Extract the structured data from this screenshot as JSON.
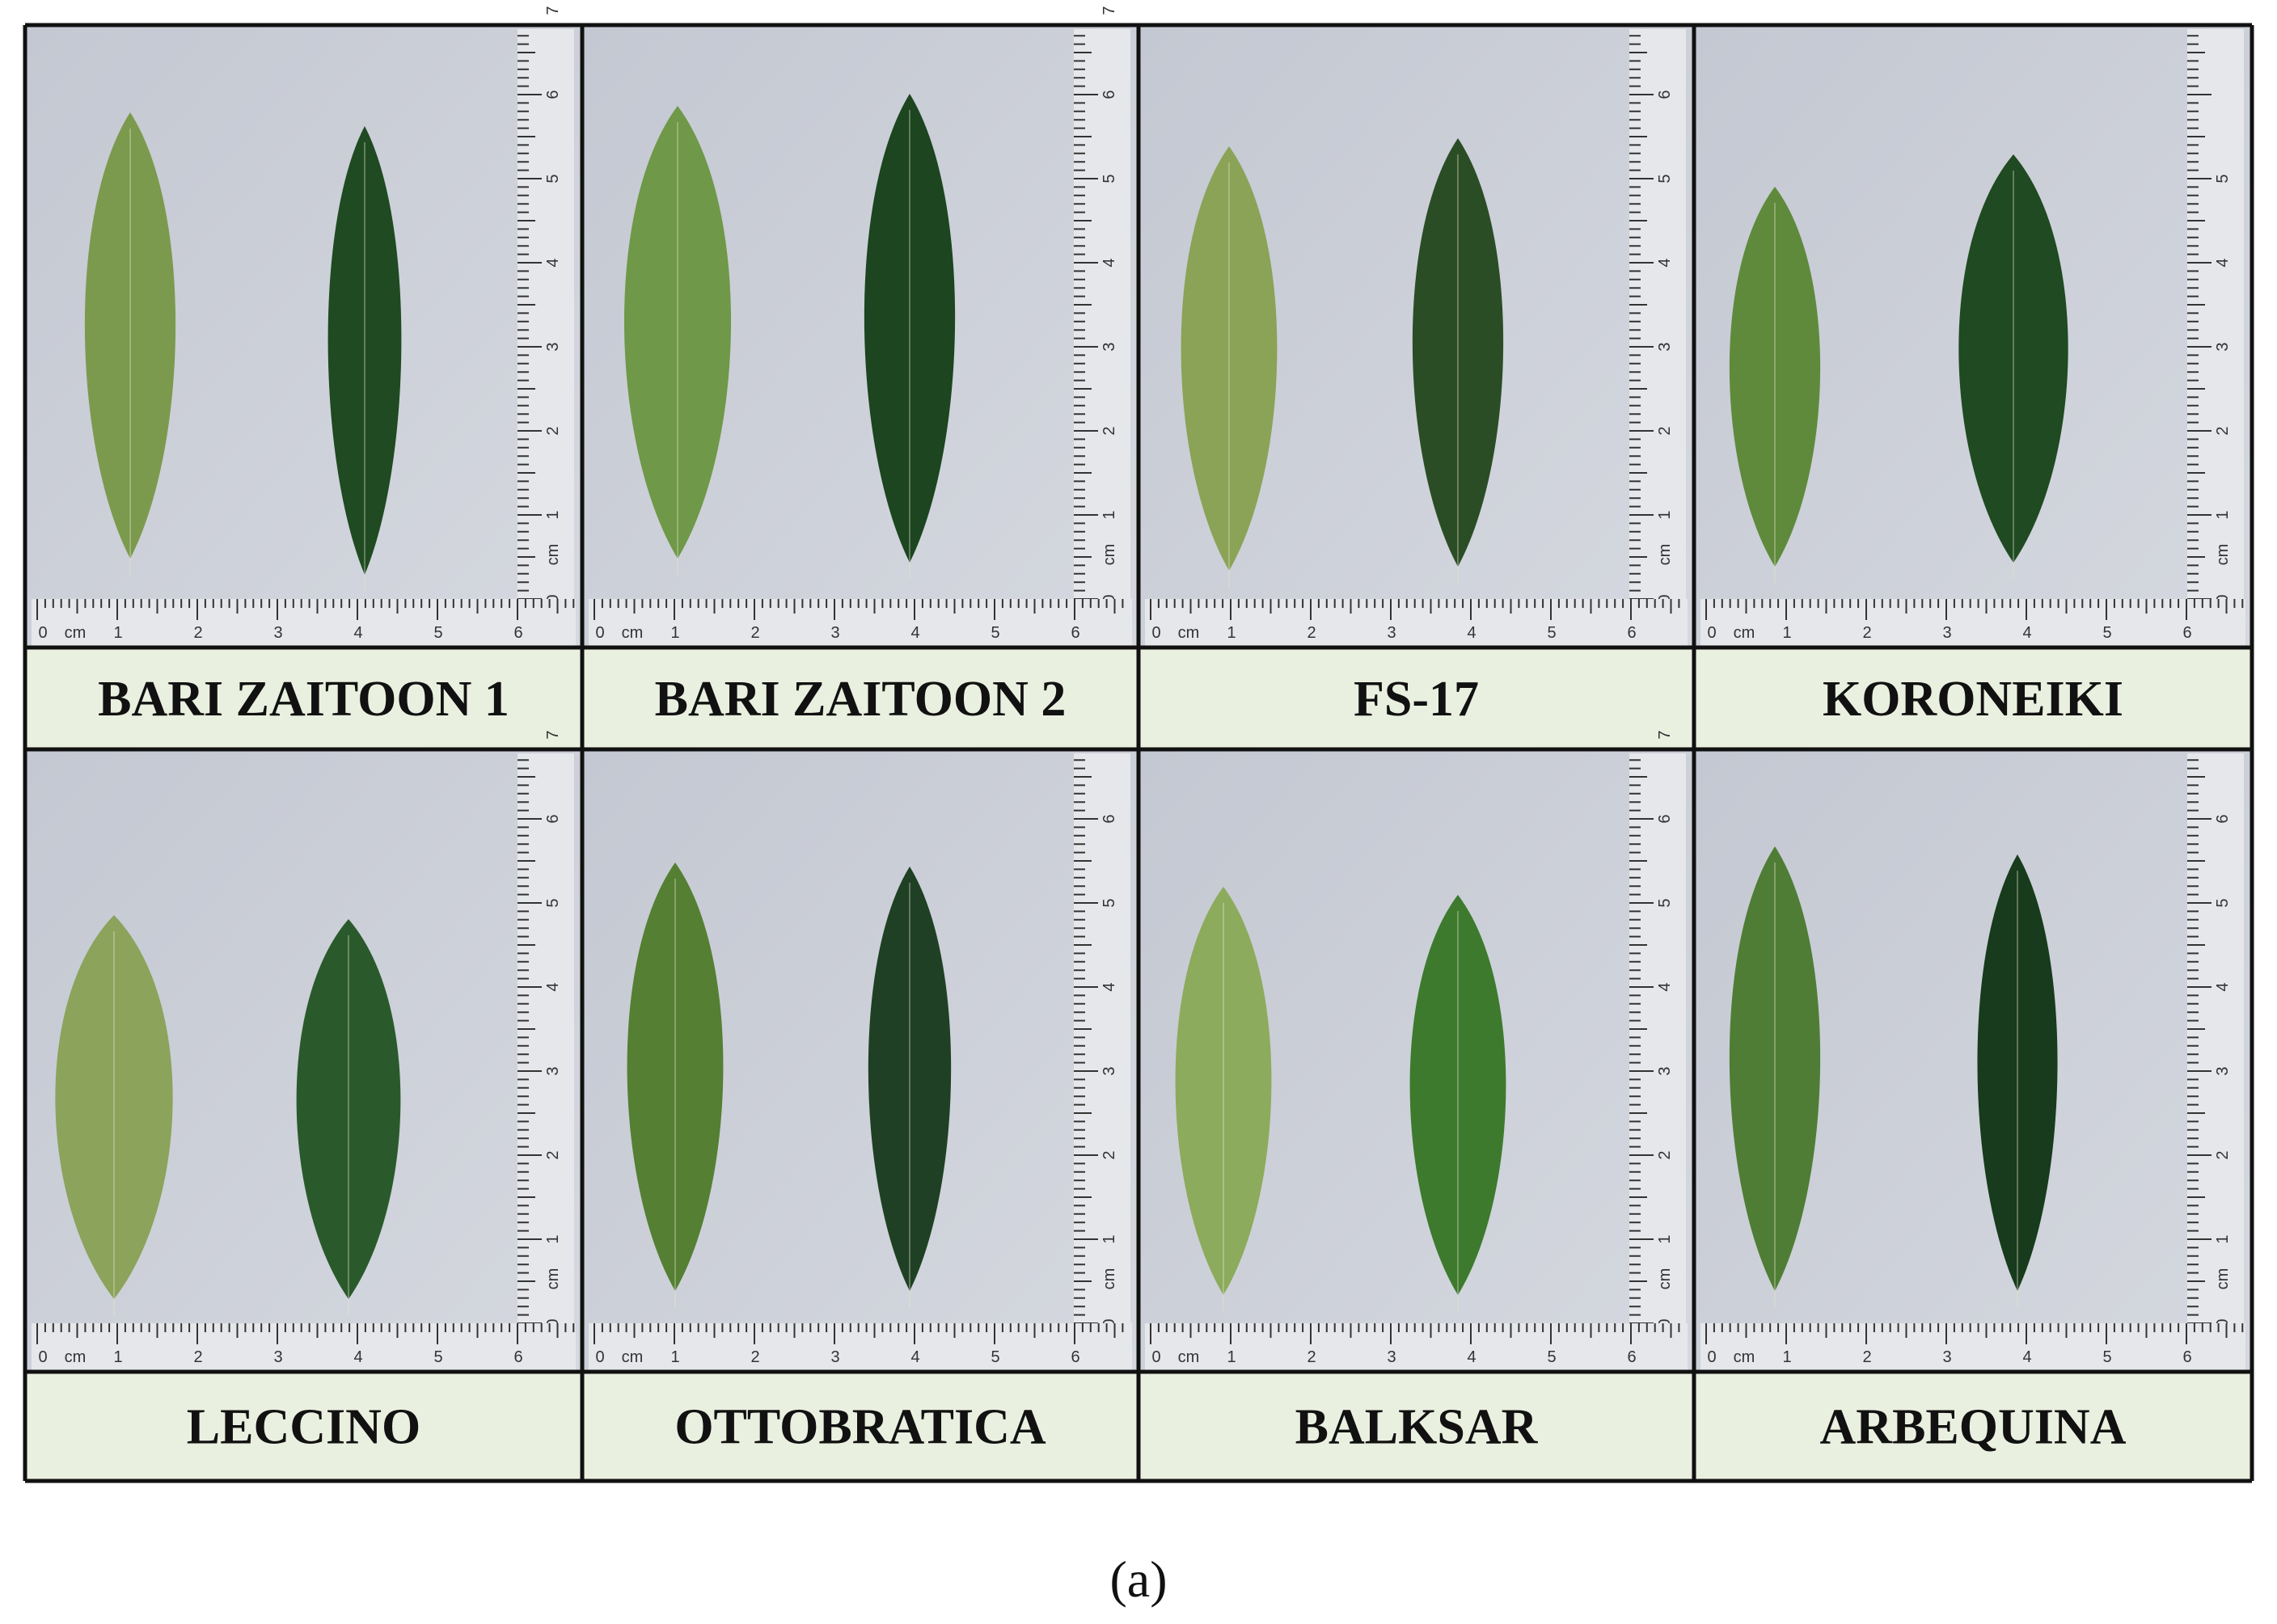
{
  "panels": [
    {
      "label": "BARI ZAITOON 1",
      "v_ruler": [
        "0",
        "cm",
        "1",
        "2",
        "3",
        "4",
        "5",
        "6",
        "7"
      ]
    },
    {
      "label": "BARI ZAITOON 2",
      "v_ruler": [
        "0",
        "cm",
        "1",
        "2",
        "3",
        "4",
        "5",
        "6",
        "7"
      ]
    },
    {
      "label": "FS-17",
      "v_ruler": [
        "0",
        "cm",
        "1",
        "2",
        "3",
        "4",
        "5",
        "6"
      ]
    },
    {
      "label": "KORONEIKI",
      "v_ruler": [
        "0",
        "cm",
        "1",
        "2",
        "3",
        "4",
        "5"
      ]
    },
    {
      "label": "LECCINO",
      "v_ruler": [
        "0",
        "cm",
        "1",
        "2",
        "3",
        "4",
        "5",
        "6",
        "7"
      ]
    },
    {
      "label": "OTTOBRATICA",
      "v_ruler": [
        "0",
        "cm",
        "1",
        "2",
        "3",
        "4",
        "5",
        "6"
      ]
    },
    {
      "label": "BALKSAR",
      "v_ruler": [
        "0",
        "cm",
        "1",
        "2",
        "3",
        "4",
        "5",
        "6",
        "7"
      ]
    },
    {
      "label": "ARBEQUINA",
      "v_ruler": [
        "0",
        "cm",
        "1",
        "2",
        "3",
        "4",
        "5",
        "6"
      ]
    }
  ],
  "h_ruler": [
    "0",
    "cm",
    "1",
    "2",
    "3",
    "4",
    "5",
    "6"
  ],
  "caption": "(a)"
}
